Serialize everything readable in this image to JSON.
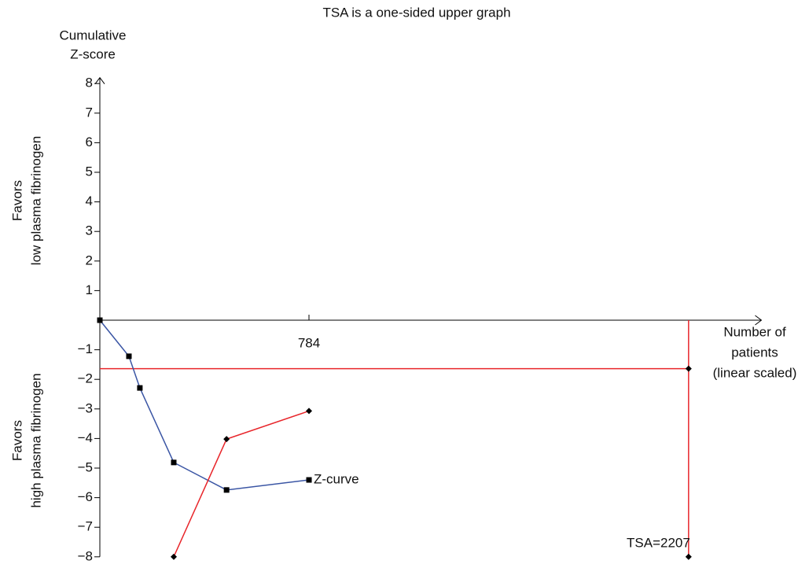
{
  "chart_data": {
    "type": "line",
    "title": "TSA is a one-sided upper graph",
    "ylabel": [
      "Cumulative",
      "Z-score"
    ],
    "xlabel": [
      "Number of",
      "patients",
      "(linear scaled)"
    ],
    "upper_label": [
      "Favors",
      "low plasma fibrinogen"
    ],
    "lower_label": [
      "Favors",
      "high plasma fibrinogen"
    ],
    "xlim": [
      0,
      2480
    ],
    "ylim": [
      -8,
      8.2
    ],
    "xticks": [
      784
    ],
    "yticks": [
      8,
      7,
      6,
      5,
      4,
      3,
      2,
      1,
      {
        "value": -1,
        "label": "−1"
      },
      {
        "value": -2,
        "label": "−2"
      },
      {
        "value": -3,
        "label": "−3"
      },
      {
        "value": -4,
        "label": "−4"
      },
      {
        "value": -5,
        "label": "−5"
      },
      {
        "value": -6,
        "label": "−6"
      },
      {
        "value": -7,
        "label": "−7"
      },
      {
        "value": -8,
        "label": "−8"
      }
    ],
    "series": [
      {
        "name": "Z-curve",
        "color": "#3a55a4",
        "marker": "square",
        "x": [
          0,
          109,
          150,
          277,
          475,
          784
        ],
        "values": [
          0,
          -1.22,
          -2.29,
          -4.81,
          -5.74,
          -5.4
        ]
      },
      {
        "color": "#e8262b",
        "marker": "diamond",
        "x": [
          277,
          475,
          784
        ],
        "values": [
          -8,
          -4.02,
          -3.07
        ]
      }
    ],
    "conventional_boundary": -1.64,
    "boundary_color": "#e8262b",
    "tsa": 2207,
    "tsa_label": "TSA=2207"
  }
}
